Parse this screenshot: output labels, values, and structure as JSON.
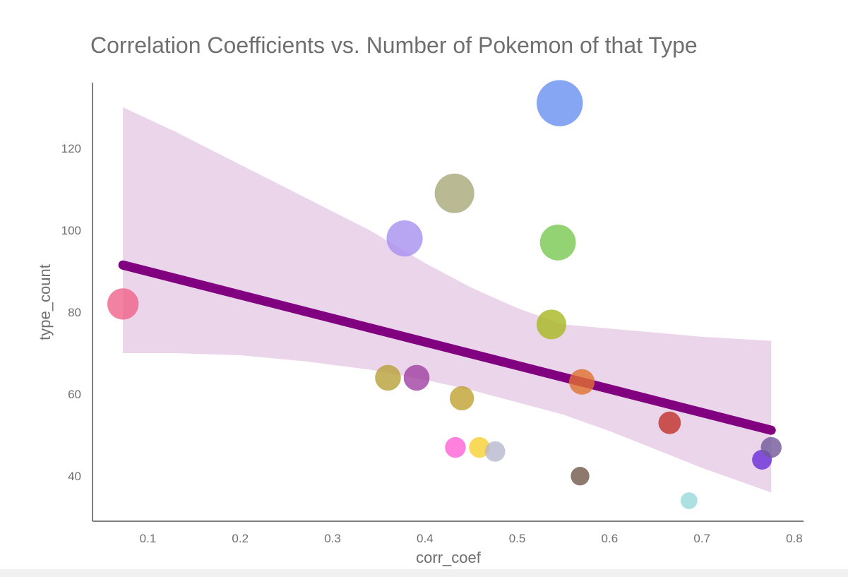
{
  "chart_data": {
    "type": "scatter",
    "title": "Correlation Coefficients vs. Number of Pokemon of that Type",
    "xlabel": "corr_coef",
    "ylabel": "type_count",
    "xlim": [
      0.04,
      0.81
    ],
    "ylim": [
      29,
      136
    ],
    "xticks": [
      "0.1",
      "0.2",
      "0.3",
      "0.4",
      "0.5",
      "0.6",
      "0.7",
      "0.8"
    ],
    "yticks": [
      "40",
      "60",
      "80",
      "100",
      "120"
    ],
    "grid": false,
    "legend": "none",
    "points": [
      {
        "x": 0.073,
        "y": 82,
        "color": "#f0628a"
      },
      {
        "x": 0.36,
        "y": 64,
        "color": "#b8a038"
      },
      {
        "x": 0.378,
        "y": 98,
        "color": "#a890f0"
      },
      {
        "x": 0.391,
        "y": 64,
        "color": "#a040a0"
      },
      {
        "x": 0.432,
        "y": 109,
        "color": "#a8a878"
      },
      {
        "x": 0.433,
        "y": 47,
        "color": "#ff61d4"
      },
      {
        "x": 0.44,
        "y": 59,
        "color": "#c0a030"
      },
      {
        "x": 0.459,
        "y": 47,
        "color": "#f8d030"
      },
      {
        "x": 0.476,
        "y": 46,
        "color": "#b8b8d0"
      },
      {
        "x": 0.537,
        "y": 77,
        "color": "#a8b820"
      },
      {
        "x": 0.544,
        "y": 97,
        "color": "#78c850"
      },
      {
        "x": 0.546,
        "y": 131,
        "color": "#6890f0"
      },
      {
        "x": 0.568,
        "y": 40,
        "color": "#705848"
      },
      {
        "x": 0.57,
        "y": 63,
        "color": "#e07030"
      },
      {
        "x": 0.665,
        "y": 53,
        "color": "#c03028"
      },
      {
        "x": 0.686,
        "y": 34,
        "color": "#98d8d8"
      },
      {
        "x": 0.765,
        "y": 44,
        "color": "#6a2cd8"
      },
      {
        "x": 0.775,
        "y": 47,
        "color": "#705898"
      }
    ],
    "regression": {
      "x": [
        0.073,
        0.775
      ],
      "y": [
        91.5,
        51.2
      ],
      "color": "#800080",
      "band_color": "#e6cbe6",
      "ci_x": [
        0.073,
        0.13,
        0.2,
        0.27,
        0.34,
        0.4,
        0.45,
        0.5,
        0.55,
        0.6,
        0.65,
        0.7,
        0.775
      ],
      "ci_upper": [
        130,
        124,
        116,
        108,
        100,
        92,
        86,
        81,
        77,
        76,
        75,
        74,
        73
      ],
      "ci_lower": [
        70,
        70,
        69.5,
        68,
        66,
        63.5,
        61,
        58,
        55,
        51,
        46.5,
        42,
        36
      ]
    }
  }
}
